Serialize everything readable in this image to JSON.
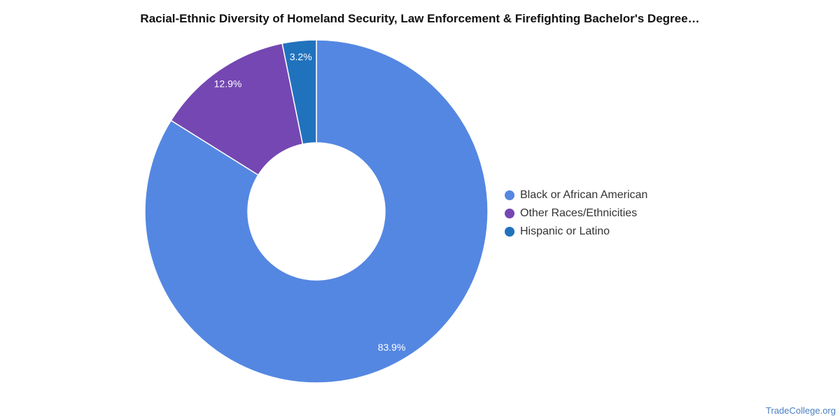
{
  "chart_data": {
    "type": "pie",
    "title": "Racial-Ethnic Diversity of Homeland Security, Law Enforcement & Firefighting Bachelor's Degree…",
    "donut": true,
    "legend_position": "right",
    "slices": [
      {
        "label": "Black or African American",
        "value": 83.9,
        "value_label": "83.9%",
        "color": "#5487e2"
      },
      {
        "label": "Other Races/Ethnicities",
        "value": 12.9,
        "value_label": "12.9%",
        "color": "#7547b2"
      },
      {
        "label": "Hispanic or Latino",
        "value": 3.2,
        "value_label": "3.2%",
        "color": "#2172bd"
      }
    ]
  },
  "source": "TradeCollege.org"
}
